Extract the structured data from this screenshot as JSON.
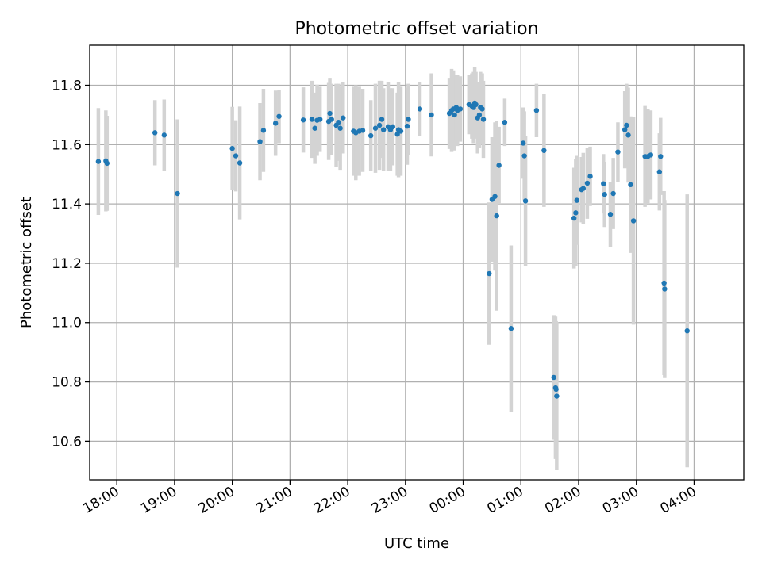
{
  "chart_data": {
    "type": "scatter",
    "title": "Photometric offset variation",
    "xlabel": "UTC time",
    "ylabel": "Photometric offset",
    "x_unit": "hours after 17:00 UTC (axis wraps past midnight)",
    "xlim": [
      0.53,
      11.86
    ],
    "ylim": [
      10.47,
      11.935
    ],
    "x_ticks": [
      1,
      2,
      3,
      4,
      5,
      6,
      7,
      8,
      9,
      10,
      11
    ],
    "x_tick_labels": [
      "18:00",
      "19:00",
      "20:00",
      "21:00",
      "22:00",
      "23:00",
      "00:00",
      "01:00",
      "02:00",
      "03:00",
      "04:00"
    ],
    "y_ticks": [
      10.6,
      10.8,
      11.0,
      11.2,
      11.4,
      11.6,
      11.8
    ],
    "y_tick_labels": [
      "10.6",
      "10.8",
      "11.0",
      "11.2",
      "11.4",
      "11.6",
      "11.8"
    ],
    "grid": true,
    "marker_color": "#1f77b4",
    "errorbar_color": "#d3d3d3",
    "series": [
      {
        "points": [
          [
            0.68,
            11.543,
            0.18
          ],
          [
            0.81,
            11.545,
            0.17
          ],
          [
            0.83,
            11.537,
            0.16
          ],
          [
            1.66,
            11.64,
            0.11
          ],
          [
            1.82,
            11.632,
            0.12
          ],
          [
            2.05,
            11.435,
            0.25
          ],
          [
            3.0,
            11.587,
            0.14
          ],
          [
            3.06,
            11.562,
            0.12
          ],
          [
            3.13,
            11.538,
            0.19
          ],
          [
            3.48,
            11.61,
            0.13
          ],
          [
            3.54,
            11.648,
            0.14
          ],
          [
            3.75,
            11.672,
            0.11
          ],
          [
            3.81,
            11.695,
            0.09
          ],
          [
            4.23,
            11.683,
            0.11
          ],
          [
            4.38,
            11.685,
            0.13
          ],
          [
            4.43,
            11.655,
            0.12
          ],
          [
            4.47,
            11.682,
            0.12
          ],
          [
            4.52,
            11.685,
            0.11
          ],
          [
            4.67,
            11.678,
            0.13
          ],
          [
            4.69,
            11.705,
            0.12
          ],
          [
            4.72,
            11.685,
            0.12
          ],
          [
            4.8,
            11.665,
            0.14
          ],
          [
            4.84,
            11.675,
            0.13
          ],
          [
            4.87,
            11.655,
            0.14
          ],
          [
            4.92,
            11.69,
            0.12
          ],
          [
            5.1,
            11.645,
            0.15
          ],
          [
            5.14,
            11.64,
            0.16
          ],
          [
            5.2,
            11.645,
            0.15
          ],
          [
            5.26,
            11.648,
            0.14
          ],
          [
            5.4,
            11.63,
            0.12
          ],
          [
            5.48,
            11.655,
            0.15
          ],
          [
            5.55,
            11.665,
            0.15
          ],
          [
            5.59,
            11.685,
            0.13
          ],
          [
            5.62,
            11.65,
            0.14
          ],
          [
            5.7,
            11.66,
            0.15
          ],
          [
            5.74,
            11.65,
            0.14
          ],
          [
            5.78,
            11.66,
            0.13
          ],
          [
            5.86,
            11.635,
            0.14
          ],
          [
            5.88,
            11.65,
            0.16
          ],
          [
            5.92,
            11.645,
            0.15
          ],
          [
            6.03,
            11.662,
            0.13
          ],
          [
            6.05,
            11.685,
            0.12
          ],
          [
            6.25,
            11.72,
            0.09
          ],
          [
            6.45,
            11.7,
            0.14
          ],
          [
            6.76,
            11.705,
            0.12
          ],
          [
            6.8,
            11.715,
            0.14
          ],
          [
            6.83,
            11.72,
            0.13
          ],
          [
            6.85,
            11.7,
            0.12
          ],
          [
            6.88,
            11.725,
            0.11
          ],
          [
            6.9,
            11.715,
            0.12
          ],
          [
            6.95,
            11.72,
            0.11
          ],
          [
            7.1,
            11.735,
            0.1
          ],
          [
            7.15,
            11.73,
            0.11
          ],
          [
            7.18,
            11.725,
            0.12
          ],
          [
            7.2,
            11.74,
            0.12
          ],
          [
            7.22,
            11.735,
            0.11
          ],
          [
            7.25,
            11.69,
            0.12
          ],
          [
            7.28,
            11.7,
            0.11
          ],
          [
            7.3,
            11.725,
            0.12
          ],
          [
            7.33,
            11.72,
            0.12
          ],
          [
            7.35,
            11.685,
            0.13
          ],
          [
            7.45,
            11.165,
            0.24
          ],
          [
            7.5,
            11.415,
            0.21
          ],
          [
            7.55,
            11.425,
            0.25
          ],
          [
            7.58,
            11.36,
            0.32
          ],
          [
            7.62,
            11.53,
            0.13
          ],
          [
            7.72,
            11.675,
            0.08
          ],
          [
            7.83,
            10.98,
            0.28
          ],
          [
            8.04,
            11.605,
            0.12
          ],
          [
            8.06,
            11.562,
            0.15
          ],
          [
            8.08,
            11.41,
            0.22
          ],
          [
            8.27,
            11.715,
            0.09
          ],
          [
            8.4,
            11.58,
            0.19
          ],
          [
            8.57,
            10.815,
            0.21
          ],
          [
            8.6,
            10.78,
            0.24
          ],
          [
            8.62,
            10.752,
            0.25
          ],
          [
            8.61,
            10.775,
            0.23
          ],
          [
            8.92,
            11.352,
            0.17
          ],
          [
            8.95,
            11.37,
            0.18
          ],
          [
            8.97,
            11.412,
            0.15
          ],
          [
            9.05,
            11.448,
            0.11
          ],
          [
            9.08,
            11.452,
            0.12
          ],
          [
            9.15,
            11.47,
            0.12
          ],
          [
            9.2,
            11.493,
            0.1
          ],
          [
            9.43,
            11.468,
            0.1
          ],
          [
            9.45,
            11.432,
            0.11
          ],
          [
            9.55,
            11.365,
            0.11
          ],
          [
            9.6,
            11.435,
            0.12
          ],
          [
            9.68,
            11.575,
            0.1
          ],
          [
            9.8,
            11.65,
            0.13
          ],
          [
            9.83,
            11.665,
            0.14
          ],
          [
            9.86,
            11.632,
            0.16
          ],
          [
            9.9,
            11.465,
            0.23
          ],
          [
            9.95,
            11.343,
            0.35
          ],
          [
            10.15,
            11.56,
            0.17
          ],
          [
            10.2,
            11.56,
            0.16
          ],
          [
            10.25,
            11.565,
            0.15
          ],
          [
            10.4,
            11.508,
            0.13
          ],
          [
            10.42,
            11.56,
            0.13
          ],
          [
            10.48,
            11.133,
            0.31
          ],
          [
            10.49,
            11.113,
            0.3
          ],
          [
            10.88,
            10.972,
            0.46
          ]
        ]
      }
    ]
  }
}
